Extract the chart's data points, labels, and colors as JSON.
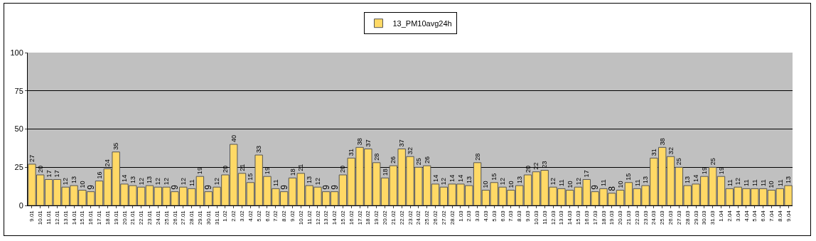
{
  "chart_data": {
    "type": "bar",
    "categories": [
      "9.01",
      "10.01",
      "11.01",
      "12.01",
      "13.01",
      "14.01",
      "15.01",
      "16.01",
      "17.01",
      "18.01",
      "19.01",
      "20.01",
      "21.01",
      "22.01",
      "23.01",
      "24.01",
      "25.01",
      "26.01",
      "27.01",
      "28.01",
      "29.01",
      "30.01",
      "31.01",
      "1.02",
      "2.02",
      "3.02",
      "4.02",
      "5.02",
      "6.02",
      "7.02",
      "8.02",
      "9.02",
      "10.02",
      "11.02",
      "12.02",
      "13.02",
      "14.02",
      "15.02",
      "16.02",
      "17.02",
      "18.02",
      "19.02",
      "20.02",
      "21.02",
      "22.02",
      "23.02",
      "24.02",
      "25.02",
      "26.02",
      "27.02",
      "28.02",
      "1.03",
      "2.03",
      "3.03",
      "4.03",
      "5.03",
      "6.03",
      "7.03",
      "8.03",
      "9.03",
      "10.03",
      "11.03",
      "12.03",
      "13.03",
      "14.03",
      "15.03",
      "16.03",
      "17.03",
      "18.03",
      "19.03",
      "20.03",
      "21.03",
      "22.03",
      "23.03",
      "24.03",
      "25.03",
      "26.03",
      "27.03",
      "28.03",
      "29.03",
      "30.03",
      "31.03",
      "1.04",
      "2.04",
      "3.04",
      "4.04",
      "5.04",
      "6.04",
      "7.04",
      "8.04",
      "9.04"
    ],
    "series": [
      {
        "name": "13_PM10avg24h",
        "color": "#ffd966",
        "values": [
          27,
          20,
          17,
          17,
          12,
          13,
          10,
          9,
          16,
          24,
          35,
          14,
          13,
          12,
          13,
          12,
          12,
          9,
          12,
          11,
          19,
          9,
          12,
          20,
          40,
          21,
          15,
          33,
          19,
          11,
          9,
          18,
          21,
          13,
          12,
          9,
          9,
          20,
          31,
          38,
          37,
          28,
          18,
          26,
          37,
          32,
          25,
          26,
          14,
          12,
          14,
          14,
          13,
          28,
          10,
          15,
          12,
          10,
          13,
          20,
          22,
          23,
          12,
          11,
          10,
          12,
          17,
          9,
          11,
          8,
          10,
          15,
          11,
          13,
          31,
          38,
          32,
          25,
          13,
          14,
          19,
          25,
          19,
          11,
          12,
          11,
          11,
          11,
          10,
          11,
          13
        ]
      }
    ],
    "ylim": [
      0,
      100
    ],
    "yticks": [
      0,
      25,
      50,
      75,
      100
    ],
    "grid": "y",
    "legend": "top",
    "data_labels": true
  }
}
